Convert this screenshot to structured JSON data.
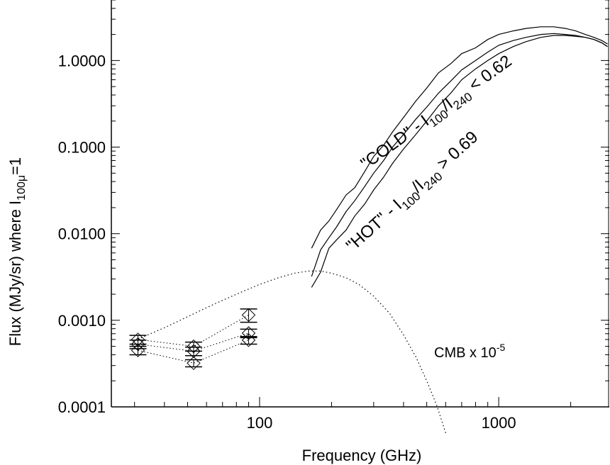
{
  "chart_data": {
    "type": "line",
    "title": "",
    "xlabel": "Frequency (GHz)",
    "ylabel_main": "Flux (MJy/sr) where I",
    "ylabel_sub": "100μ",
    "ylabel_tail": "=1",
    "x_scale": "log",
    "y_scale": "log",
    "xlim": [
      24,
      2900
    ],
    "ylim": [
      0.0001,
      5
    ],
    "x_ticks": [
      {
        "value": 100,
        "label": "100"
      },
      {
        "value": 1000,
        "label": "1000"
      }
    ],
    "y_ticks": [
      {
        "value": 0.0001,
        "label": "0.0001"
      },
      {
        "value": 0.001,
        "label": "0.0010"
      },
      {
        "value": 0.01,
        "label": "0.0100"
      },
      {
        "value": 0.1,
        "label": "0.1000"
      },
      {
        "value": 1,
        "label": "1.0000"
      }
    ],
    "annotations": {
      "cold": {
        "pre": "\"COLD\" - I",
        "s1": "100",
        "mid": "/I",
        "s2": "240",
        "post": " < 0.62"
      },
      "hot": {
        "pre": "\"HOT\" - I",
        "s1": "100",
        "mid": "/I",
        "s2": "240",
        "post": " > 0.69"
      },
      "cmb": {
        "pre": "CMB x 10",
        "sup": "-5"
      }
    },
    "series": [
      {
        "key": "cold",
        "style": "solid",
        "x": [
          165,
          180,
          195,
          210,
          230,
          250,
          275,
          300,
          330,
          360,
          400,
          450,
          500,
          560,
          630,
          700,
          800,
          900,
          1000,
          1150,
          1300,
          1500,
          1700,
          1900,
          2100,
          2300,
          2500,
          2700,
          2850
        ],
        "y": [
          0.0068,
          0.011,
          0.014,
          0.019,
          0.028,
          0.034,
          0.052,
          0.078,
          0.105,
          0.15,
          0.22,
          0.34,
          0.48,
          0.72,
          0.92,
          1.2,
          1.4,
          1.75,
          2.0,
          2.2,
          2.35,
          2.45,
          2.45,
          2.35,
          2.2,
          2.0,
          1.85,
          1.7,
          1.55
        ]
      },
      {
        "key": "mid",
        "style": "solid",
        "x": [
          165,
          180,
          195,
          210,
          230,
          250,
          275,
          300,
          330,
          360,
          400,
          450,
          500,
          560,
          630,
          700,
          800,
          900,
          1000,
          1150,
          1300,
          1500,
          1700,
          1900,
          2100,
          2300,
          2500,
          2700,
          2850
        ],
        "y": [
          0.0032,
          0.0065,
          0.009,
          0.012,
          0.018,
          0.024,
          0.035,
          0.05,
          0.07,
          0.1,
          0.14,
          0.21,
          0.29,
          0.42,
          0.58,
          0.78,
          1.0,
          1.25,
          1.5,
          1.7,
          1.85,
          2.0,
          2.05,
          2.0,
          1.95,
          1.85,
          1.75,
          1.6,
          1.45
        ]
      },
      {
        "key": "hot",
        "style": "solid",
        "x": [
          165,
          180,
          195,
          210,
          230,
          250,
          275,
          300,
          330,
          360,
          400,
          450,
          500,
          560,
          630,
          700,
          800,
          900,
          1000,
          1150,
          1300,
          1500,
          1700,
          1900,
          2100,
          2300,
          2500,
          2700,
          2850
        ],
        "y": [
          0.0024,
          0.0036,
          0.0068,
          0.0085,
          0.011,
          0.016,
          0.022,
          0.032,
          0.045,
          0.065,
          0.095,
          0.14,
          0.2,
          0.3,
          0.42,
          0.6,
          0.8,
          1.0,
          1.2,
          1.45,
          1.65,
          1.85,
          1.95,
          1.95,
          1.9,
          1.85,
          1.75,
          1.6,
          1.45
        ]
      },
      {
        "key": "cmb",
        "style": "dotted",
        "x": [
          30,
          35,
          40,
          50,
          60,
          70,
          80,
          100,
          120,
          140,
          160,
          180,
          200,
          230,
          260,
          300,
          350,
          400,
          450,
          500,
          550,
          600
        ],
        "y": [
          0.00058,
          0.0007,
          0.00082,
          0.0011,
          0.0014,
          0.0017,
          0.002,
          0.0026,
          0.0031,
          0.0035,
          0.0037,
          0.0037,
          0.0035,
          0.0031,
          0.0026,
          0.0019,
          0.0012,
          0.00068,
          0.00038,
          0.0002,
          0.000105,
          5e-05
        ]
      }
    ],
    "datapoints": [
      {
        "x": 31,
        "y": [
          0.00045,
          0.00053,
          0.0006
        ],
        "err": [
          5e-05,
          6e-05,
          7e-05
        ]
      },
      {
        "x": 53,
        "y": [
          0.00032,
          0.00044,
          0.0005
        ],
        "err": [
          3e-05,
          5e-05,
          6e-05
        ]
      },
      {
        "x": 90,
        "y": [
          0.00059,
          0.00071,
          0.00115
        ],
        "err": [
          6e-05,
          8e-05,
          0.0002
        ]
      }
    ]
  }
}
